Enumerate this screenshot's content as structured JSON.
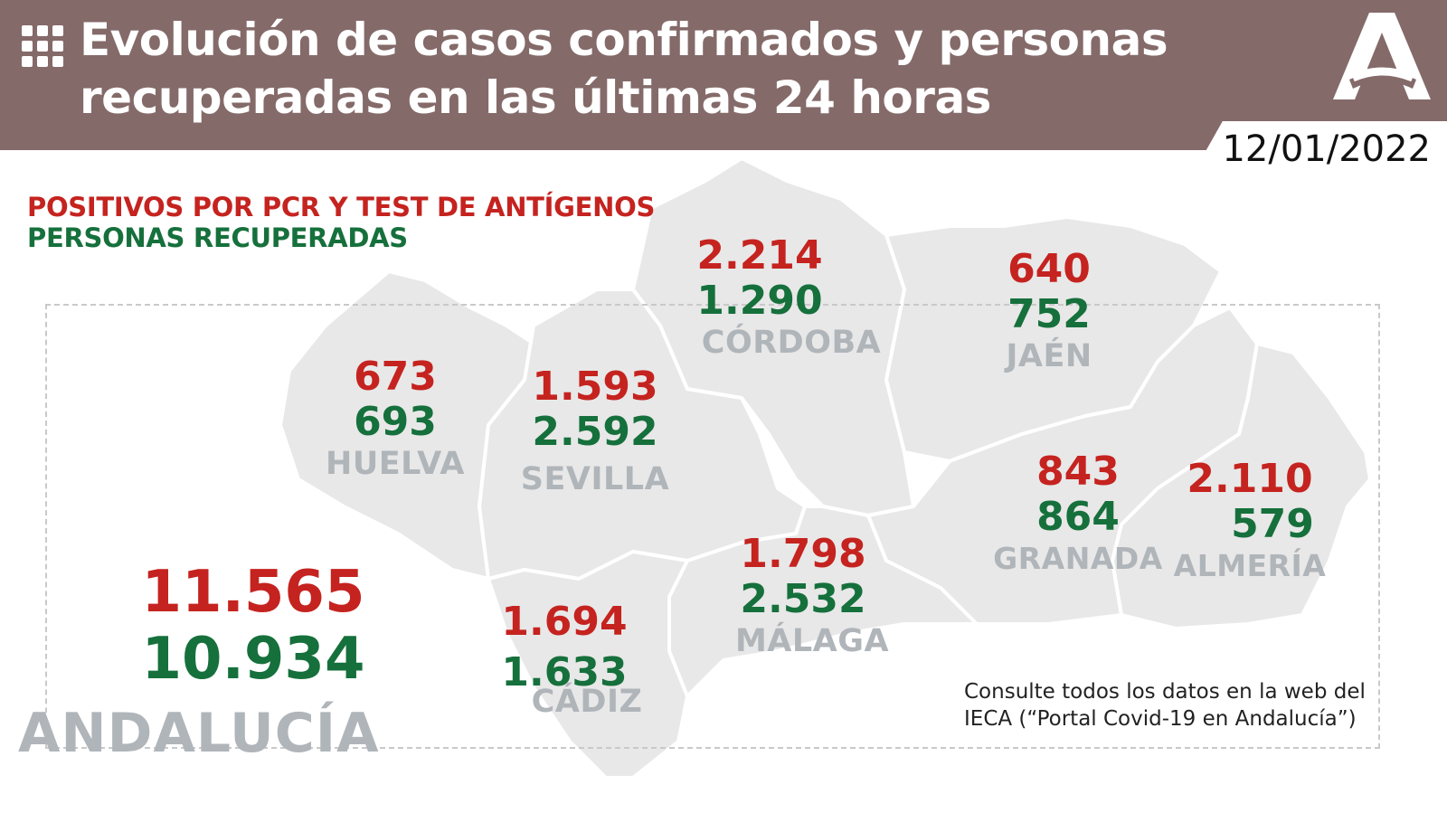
{
  "header": {
    "title_line1": "Evolución de casos confirmados y personas",
    "title_line2": "recuperadas en las últimas 24 horas",
    "date": "12/01/2022"
  },
  "legend": {
    "positive_label": "POSITIVOS POR PCR Y TEST DE ANTÍGENOS",
    "recovered_label": "PERSONAS RECUPERADAS"
  },
  "colors": {
    "header_bg": "#846a69",
    "positive": "#c5231f",
    "recovered": "#16703c",
    "province_name": "#b0b5ba",
    "map_fill": "#e8e8e8"
  },
  "provinces": [
    {
      "name": "HUELVA",
      "positive": "673",
      "recovered": "693"
    },
    {
      "name": "SEVILLA",
      "positive": "1.593",
      "recovered": "2.592"
    },
    {
      "name": "CÓRDOBA",
      "positive": "2.214",
      "recovered": "1.290"
    },
    {
      "name": "JAÉN",
      "positive": "640",
      "recovered": "752"
    },
    {
      "name": "GRANADA",
      "positive": "843",
      "recovered": "864"
    },
    {
      "name": "ALMERÍA",
      "positive": "2.110",
      "recovered": "579"
    },
    {
      "name": "MÁLAGA",
      "positive": "1.798",
      "recovered": "2.532"
    },
    {
      "name": "CÁDIZ",
      "positive": "1.694",
      "recovered": "1.633"
    }
  ],
  "total": {
    "region": "ANDALUCÍA",
    "positive": "11.565",
    "recovered": "10.934"
  },
  "note": {
    "line1": "Consulte todos los datos en la web del",
    "line2": "IECA (“Portal Covid-19 en Andalucía”)"
  },
  "icons": {
    "grid": "grid-icon",
    "logo": "junta-andalucia-logo"
  }
}
